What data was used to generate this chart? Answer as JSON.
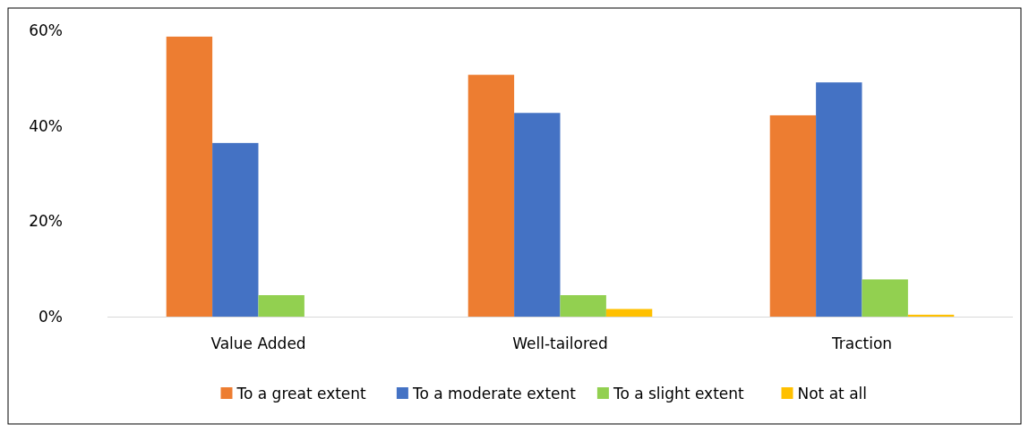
{
  "chart_data": {
    "type": "bar",
    "categories": [
      "Value Added",
      "Well-tailored",
      "Traction"
    ],
    "series": [
      {
        "name": "To a great extent",
        "color": "#ed7d31",
        "values": [
          58.7,
          50.7,
          42.2
        ]
      },
      {
        "name": "To a moderate extent",
        "color": "#4472c4",
        "values": [
          36.4,
          42.7,
          49.1
        ]
      },
      {
        "name": "To a slight extent",
        "color": "#92d050",
        "values": [
          4.5,
          4.5,
          7.8
        ]
      },
      {
        "name": "Not at all",
        "color": "#ffc000",
        "values": [
          0,
          1.6,
          0.4
        ]
      }
    ],
    "ylim": [
      0,
      60
    ],
    "yticks": [
      {
        "value": 0,
        "label": "0%"
      },
      {
        "value": 20,
        "label": "20%"
      },
      {
        "value": 40,
        "label": "40%"
      },
      {
        "value": 60,
        "label": "60%"
      }
    ],
    "grid": false,
    "legend": "bottom"
  }
}
